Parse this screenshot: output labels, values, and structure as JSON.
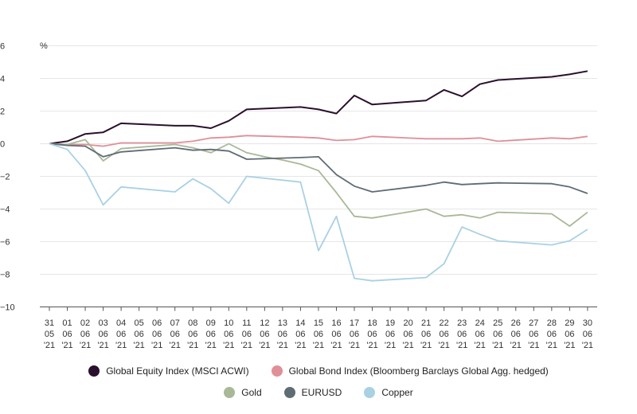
{
  "chart_data": {
    "type": "line",
    "ylabel": "%",
    "ylim": [
      -10,
      6
    ],
    "yticks": [
      -10,
      -8,
      -6,
      -4,
      -2,
      0,
      2,
      4,
      6
    ],
    "grid": true,
    "legend_position": "bottom",
    "x": [
      [
        "31",
        "05",
        "'21"
      ],
      [
        "01",
        "06",
        "'21"
      ],
      [
        "02",
        "06",
        "'21"
      ],
      [
        "03",
        "06",
        "'21"
      ],
      [
        "04",
        "06",
        "'21"
      ],
      [
        "05",
        "06",
        "'21"
      ],
      [
        "06",
        "06",
        "'21"
      ],
      [
        "07",
        "06",
        "'21"
      ],
      [
        "08",
        "06",
        "'21"
      ],
      [
        "09",
        "06",
        "'21"
      ],
      [
        "10",
        "06",
        "'21"
      ],
      [
        "11",
        "06",
        "'21"
      ],
      [
        "12",
        "06",
        "'21"
      ],
      [
        "13",
        "06",
        "'21"
      ],
      [
        "14",
        "06",
        "'21"
      ],
      [
        "15",
        "06",
        "'21"
      ],
      [
        "16",
        "06",
        "'21"
      ],
      [
        "17",
        "06",
        "'21"
      ],
      [
        "18",
        "06",
        "'21"
      ],
      [
        "19",
        "06",
        "'21"
      ],
      [
        "20",
        "06",
        "'21"
      ],
      [
        "21",
        "06",
        "'21"
      ],
      [
        "22",
        "06",
        "'21"
      ],
      [
        "23",
        "06",
        "'21"
      ],
      [
        "24",
        "06",
        "'21"
      ],
      [
        "25",
        "06",
        "'21"
      ],
      [
        "26",
        "06",
        "'21"
      ],
      [
        "27",
        "06",
        "'21"
      ],
      [
        "28",
        "06",
        "'21"
      ],
      [
        "29",
        "06",
        "'21"
      ],
      [
        "30",
        "06",
        "'21"
      ]
    ],
    "series": [
      {
        "name": "Global Equity Index (MSCI ACWI)",
        "color": "#2b0f2e",
        "points": [
          [
            0,
            0
          ],
          [
            1,
            0.15
          ],
          [
            2,
            0.6
          ],
          [
            3,
            0.7
          ],
          [
            4,
            1.25
          ],
          [
            7,
            1.1
          ],
          [
            8,
            1.1
          ],
          [
            9,
            0.95
          ],
          [
            10,
            1.4
          ],
          [
            11,
            2.1
          ],
          [
            14,
            2.25
          ],
          [
            15,
            2.1
          ],
          [
            16,
            1.85
          ],
          [
            17,
            2.95
          ],
          [
            18,
            2.4
          ],
          [
            21,
            2.65
          ],
          [
            22,
            3.3
          ],
          [
            23,
            2.9
          ],
          [
            24,
            3.65
          ],
          [
            25,
            3.9
          ],
          [
            28,
            4.1
          ],
          [
            29,
            4.25
          ],
          [
            30,
            4.45
          ]
        ]
      },
      {
        "name": "Global Bond Index (Bloomberg Barclays Global Agg. hedged)",
        "color": "#e08f98",
        "points": [
          [
            0,
            0
          ],
          [
            1,
            -0.05
          ],
          [
            2,
            -0.05
          ],
          [
            3,
            -0.15
          ],
          [
            4,
            0.05
          ],
          [
            7,
            0.05
          ],
          [
            8,
            0.15
          ],
          [
            9,
            0.35
          ],
          [
            10,
            0.4
          ],
          [
            11,
            0.5
          ],
          [
            14,
            0.4
          ],
          [
            15,
            0.35
          ],
          [
            16,
            0.2
          ],
          [
            17,
            0.25
          ],
          [
            18,
            0.45
          ],
          [
            21,
            0.3
          ],
          [
            22,
            0.3
          ],
          [
            23,
            0.3
          ],
          [
            24,
            0.35
          ],
          [
            25,
            0.15
          ],
          [
            28,
            0.35
          ],
          [
            29,
            0.3
          ],
          [
            30,
            0.45
          ]
        ]
      },
      {
        "name": "Gold",
        "color": "#a9b897",
        "points": [
          [
            0,
            0
          ],
          [
            1,
            -0.05
          ],
          [
            2,
            0.25
          ],
          [
            3,
            -1.05
          ],
          [
            4,
            -0.3
          ],
          [
            7,
            -0.05
          ],
          [
            8,
            -0.25
          ],
          [
            9,
            -0.55
          ],
          [
            10,
            0
          ],
          [
            11,
            -0.55
          ],
          [
            12,
            -0.8
          ],
          [
            13,
            -1.0
          ],
          [
            14,
            -1.25
          ],
          [
            15,
            -1.65
          ],
          [
            16,
            -3.0
          ],
          [
            17,
            -4.45
          ],
          [
            18,
            -4.55
          ],
          [
            21,
            -4.0
          ],
          [
            22,
            -4.45
          ],
          [
            23,
            -4.35
          ],
          [
            24,
            -4.55
          ],
          [
            25,
            -4.2
          ],
          [
            28,
            -4.3
          ],
          [
            29,
            -5.05
          ],
          [
            30,
            -4.2
          ]
        ]
      },
      {
        "name": "EURUSD",
        "color": "#5e6c74",
        "points": [
          [
            0,
            0
          ],
          [
            1,
            -0.1
          ],
          [
            2,
            -0.15
          ],
          [
            3,
            -0.8
          ],
          [
            4,
            -0.5
          ],
          [
            7,
            -0.25
          ],
          [
            8,
            -0.4
          ],
          [
            9,
            -0.35
          ],
          [
            10,
            -0.45
          ],
          [
            11,
            -0.95
          ],
          [
            14,
            -0.85
          ],
          [
            15,
            -0.8
          ],
          [
            16,
            -1.9
          ],
          [
            17,
            -2.6
          ],
          [
            18,
            -2.95
          ],
          [
            21,
            -2.55
          ],
          [
            22,
            -2.35
          ],
          [
            23,
            -2.5
          ],
          [
            24,
            -2.45
          ],
          [
            25,
            -2.4
          ],
          [
            28,
            -2.45
          ],
          [
            29,
            -2.65
          ],
          [
            30,
            -3.05
          ]
        ]
      },
      {
        "name": "Copper",
        "color": "#a9d1e4",
        "points": [
          [
            0,
            0
          ],
          [
            1,
            -0.35
          ],
          [
            2,
            -1.65
          ],
          [
            3,
            -3.75
          ],
          [
            4,
            -2.65
          ],
          [
            7,
            -2.95
          ],
          [
            8,
            -2.15
          ],
          [
            9,
            -2.75
          ],
          [
            10,
            -3.65
          ],
          [
            11,
            -2.0
          ],
          [
            14,
            -2.35
          ],
          [
            15,
            -6.55
          ],
          [
            16,
            -4.45
          ],
          [
            17,
            -8.25
          ],
          [
            18,
            -8.4
          ],
          [
            21,
            -8.2
          ],
          [
            22,
            -7.35
          ],
          [
            23,
            -5.1
          ],
          [
            24,
            -5.55
          ],
          [
            25,
            -5.95
          ],
          [
            28,
            -6.2
          ],
          [
            29,
            -5.95
          ],
          [
            30,
            -5.25
          ]
        ]
      }
    ]
  },
  "legend": {
    "row1": [
      {
        "label": "Global Equity Index (MSCI ACWI)",
        "color": "#2b0f2e"
      },
      {
        "label": "Global Bond Index (Bloomberg Barclays Global Agg. hedged)",
        "color": "#e08f98"
      }
    ],
    "row2": [
      {
        "label": "Gold",
        "color": "#a9b897"
      },
      {
        "label": "EURUSD",
        "color": "#5e6c74"
      },
      {
        "label": "Copper",
        "color": "#a9d1e4"
      }
    ]
  }
}
